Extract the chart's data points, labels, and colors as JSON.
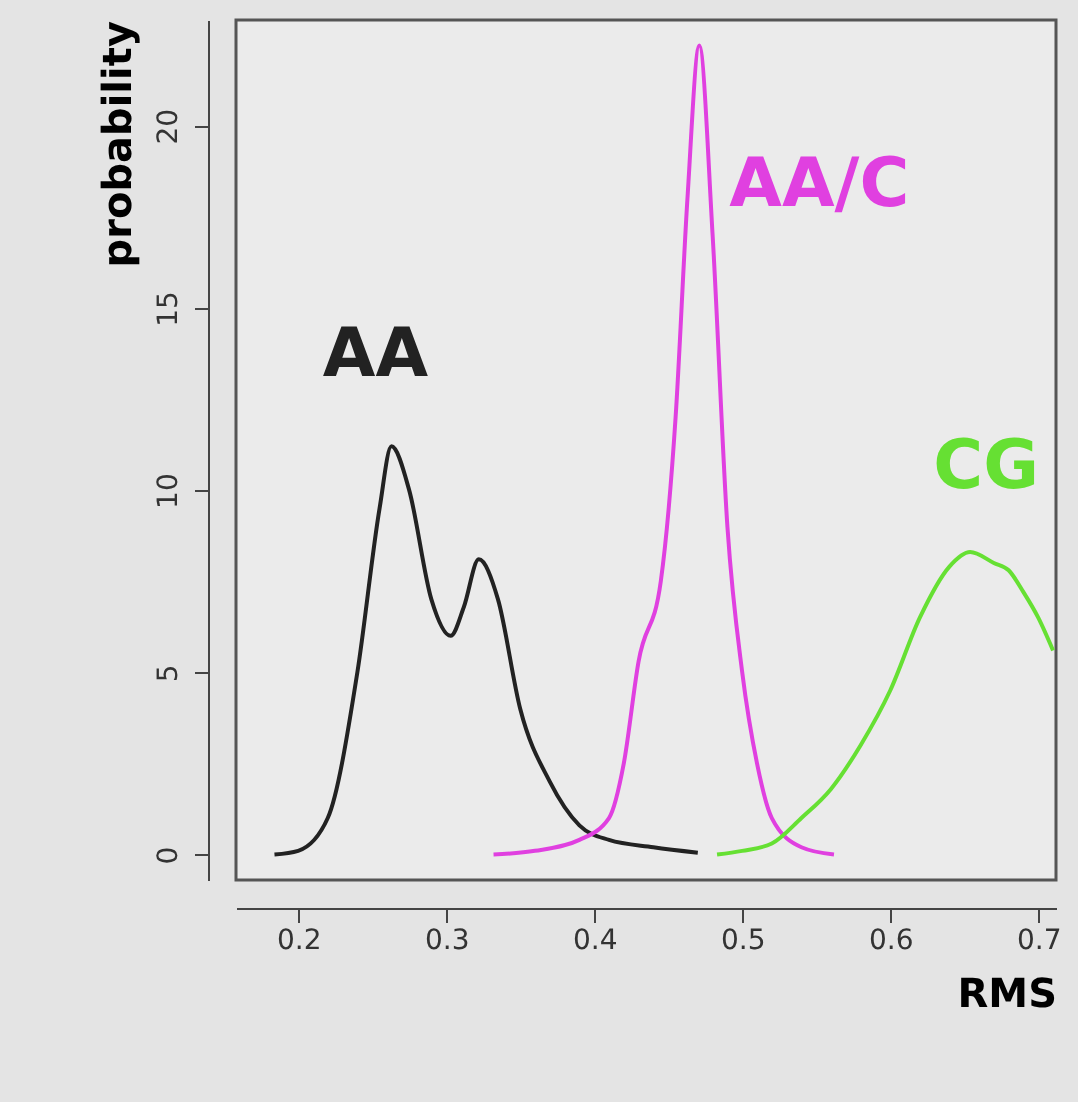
{
  "chart_data": {
    "type": "line",
    "xlabel": "RMS",
    "ylabel": "probability",
    "xlim": [
      0.158,
      0.712
    ],
    "ylim": [
      -0.7,
      22.9
    ],
    "xticks": [
      0.2,
      0.3,
      0.4,
      0.5,
      0.6,
      0.7
    ],
    "yticks": [
      0,
      5,
      10,
      15,
      20
    ],
    "grid": false,
    "marker": "none",
    "line_style": "solid",
    "series": [
      {
        "name": "AA",
        "color": "#222222",
        "x": [
          0.184,
          0.2,
          0.22,
          0.24,
          0.255,
          0.263,
          0.275,
          0.29,
          0.303,
          0.312,
          0.322,
          0.335,
          0.35,
          0.37,
          0.39,
          0.41,
          0.44,
          0.47
        ],
        "values": [
          0,
          0.1,
          1,
          5,
          9.5,
          11.2,
          10,
          7,
          6,
          6.8,
          8.1,
          7,
          4,
          2,
          0.8,
          0.4,
          0.2,
          0.05
        ]
      },
      {
        "name": "AA/C",
        "color": "#e040e0",
        "x": [
          0.332,
          0.36,
          0.39,
          0.41,
          0.42,
          0.43,
          0.445,
          0.455,
          0.463,
          0.471,
          0.48,
          0.49,
          0.5,
          0.51,
          0.52,
          0.54,
          0.562
        ],
        "values": [
          0,
          0.1,
          0.4,
          1,
          2.5,
          5.3,
          7.5,
          12,
          18,
          22.2,
          17,
          9,
          5,
          2.5,
          1,
          0.2,
          0
        ]
      },
      {
        "name": "CG",
        "color": "#66e033",
        "x": [
          0.483,
          0.5,
          0.52,
          0.54,
          0.56,
          0.58,
          0.6,
          0.62,
          0.64,
          0.654,
          0.67,
          0.68,
          0.69,
          0.7,
          0.71
        ],
        "values": [
          0,
          0.1,
          0.3,
          1,
          1.8,
          3,
          4.5,
          6.5,
          7.9,
          8.3,
          8,
          7.8,
          7.2,
          6.5,
          5.6
        ]
      }
    ]
  }
}
